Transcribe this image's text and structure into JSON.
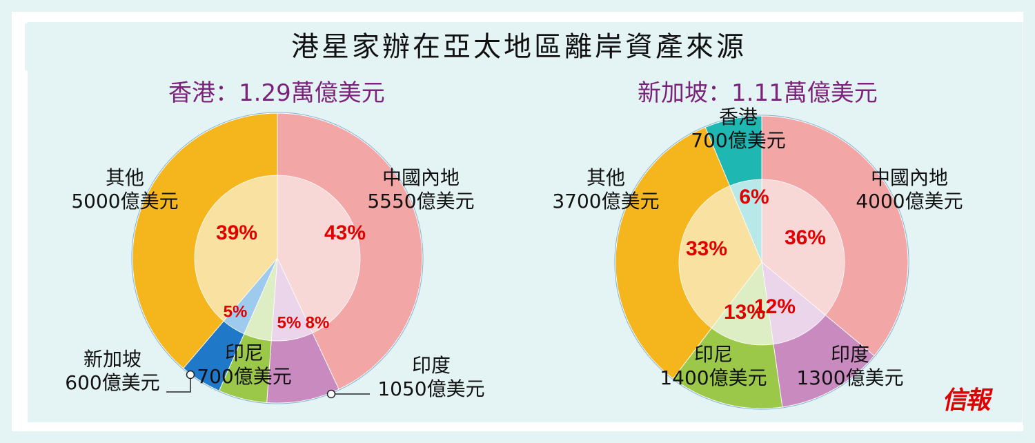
{
  "page": {
    "title": "港星家辦在亞太地區離岸資產來源",
    "watermark": "信報"
  },
  "chart_data": [
    {
      "type": "pie",
      "title": "香港：1.29萬億美元",
      "series": [
        {
          "categories": [
            "中國內地",
            "印度",
            "印尼",
            "新加坡",
            "其他"
          ],
          "values": [
            5550,
            1050,
            700,
            600,
            5000
          ],
          "value_labels": [
            "5550億美元",
            "1050億美元",
            "700億美元",
            "600億美元",
            "5000億美元"
          ],
          "percent_labels": [
            "43%",
            "8%",
            "5%",
            "5%",
            "39%"
          ],
          "colors": [
            "#f3a6a6",
            "#c98abf",
            "#9cc84a",
            "#1f78c8",
            "#f4b51d"
          ],
          "inner_colors": [
            "#f8d7d7",
            "#ead5eb",
            "#ddeec4",
            "#9ecaee",
            "#f9e1a1"
          ]
        }
      ]
    },
    {
      "type": "pie",
      "title": "新加坡：1.11萬億美元",
      "series": [
        {
          "categories": [
            "中國內地",
            "印度",
            "印尼",
            "其他",
            "香港"
          ],
          "values": [
            4000,
            1300,
            1400,
            3700,
            700
          ],
          "value_labels": [
            "4000億美元",
            "1300億美元",
            "1400億美元",
            "3700億美元",
            "700億美元"
          ],
          "percent_labels": [
            "36%",
            "12%",
            "13%",
            "33%",
            "6%"
          ],
          "colors": [
            "#f3a6a6",
            "#c98abf",
            "#9cc84a",
            "#f4b51d",
            "#1fb7b2"
          ],
          "inner_colors": [
            "#f8d7d7",
            "#ead5eb",
            "#ddeec4",
            "#f9e1a1",
            "#b8e8e8"
          ]
        }
      ]
    }
  ]
}
